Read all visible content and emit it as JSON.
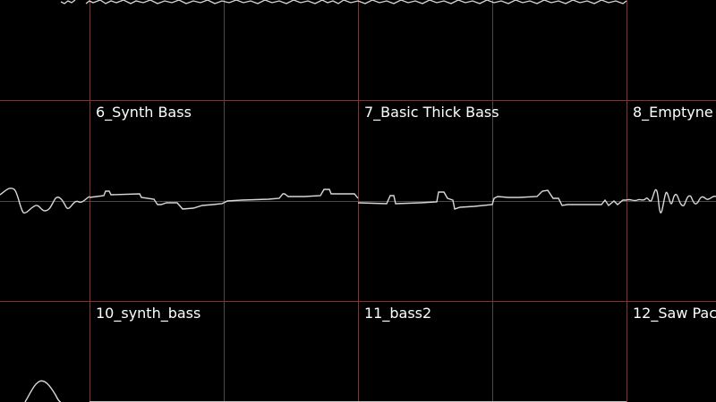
{
  "wavetable_grid": {
    "colors": {
      "background": "#000000",
      "cell_border": "#8b3030",
      "center_line": "#555555",
      "waveform": "#d8d8d8"
    },
    "cells": [
      {
        "id": "cell-6",
        "label": "6_Synth Bass"
      },
      {
        "id": "cell-7",
        "label": "7_Basic Thick Bass"
      },
      {
        "id": "cell-8",
        "label": "8_Emptyne"
      },
      {
        "id": "cell-10",
        "label": "10_synth_bass"
      },
      {
        "id": "cell-11",
        "label": "11_bass2"
      },
      {
        "id": "cell-12",
        "label": "12_Saw Pac"
      }
    ]
  }
}
